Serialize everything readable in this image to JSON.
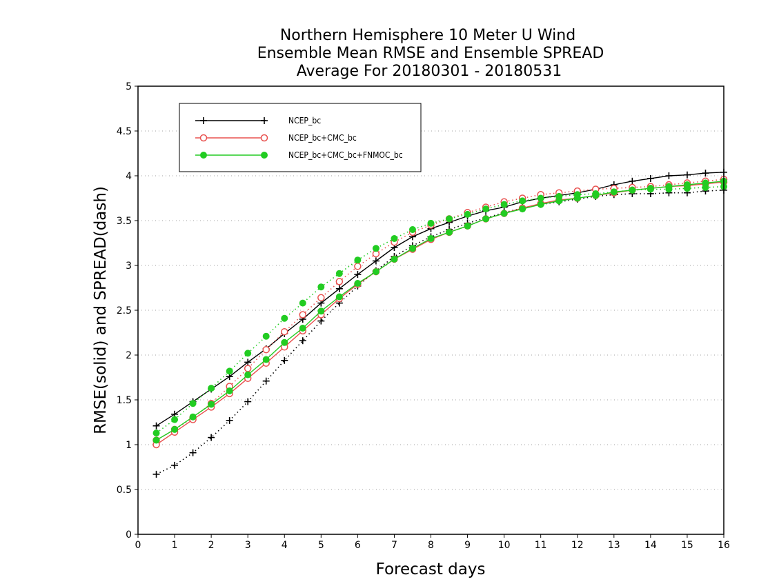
{
  "chart_data": {
    "type": "line",
    "title_lines": [
      "Northern Hemisphere 10 Meter U Wind",
      "Ensemble Mean RMSE and Ensemble SPREAD",
      "Average For 20180301 - 20180531"
    ],
    "xlabel": "Forecast days",
    "ylabel": "RMSE(solid) and SPREAD(dash)",
    "xlim": [
      0,
      16
    ],
    "ylim": [
      0,
      5
    ],
    "xticks": [
      0,
      1,
      2,
      3,
      4,
      5,
      6,
      7,
      8,
      9,
      10,
      11,
      12,
      13,
      14,
      15,
      16
    ],
    "yticks": [
      0,
      0.5,
      1,
      1.5,
      2,
      2.5,
      3,
      3.5,
      4,
      4.5,
      5
    ],
    "ytick_labels": [
      "0",
      "0.5",
      "1",
      "1.5",
      "2",
      "2.5",
      "3",
      "3.5",
      "4",
      "4.5",
      "5"
    ],
    "grid": "horizontal dotted",
    "legend_position": "top-left",
    "x": [
      0.5,
      1,
      1.5,
      2,
      2.5,
      3,
      3.5,
      4,
      4.5,
      5,
      5.5,
      6,
      6.5,
      7,
      7.5,
      8,
      8.5,
      9,
      9.5,
      10,
      10.5,
      11,
      11.5,
      12,
      12.5,
      13,
      13.5,
      14,
      14.5,
      15,
      15.5,
      16
    ],
    "series": [
      {
        "name": "NCEP_bc",
        "color": "#000000",
        "marker": "plus",
        "rmse": [
          1.21,
          1.34,
          1.48,
          1.62,
          1.76,
          1.92,
          2.07,
          2.24,
          2.4,
          2.58,
          2.74,
          2.9,
          3.05,
          3.2,
          3.32,
          3.41,
          3.48,
          3.55,
          3.61,
          3.65,
          3.71,
          3.75,
          3.78,
          3.81,
          3.85,
          3.9,
          3.94,
          3.97,
          4.0,
          4.01,
          4.03,
          4.04
        ],
        "spread": [
          0.67,
          0.77,
          0.91,
          1.08,
          1.27,
          1.48,
          1.71,
          1.94,
          2.16,
          2.38,
          2.58,
          2.77,
          2.94,
          3.1,
          3.22,
          3.32,
          3.4,
          3.47,
          3.53,
          3.59,
          3.64,
          3.68,
          3.71,
          3.74,
          3.77,
          3.79,
          3.8,
          3.8,
          3.81,
          3.81,
          3.83,
          3.84
        ]
      },
      {
        "name": "NCEP_bc+CMC_bc",
        "color": "#e8504e",
        "marker": "open-circle",
        "rmse": [
          1.0,
          1.14,
          1.28,
          1.42,
          1.57,
          1.74,
          1.91,
          2.09,
          2.27,
          2.45,
          2.63,
          2.79,
          2.93,
          3.07,
          3.18,
          3.29,
          3.37,
          3.44,
          3.52,
          3.58,
          3.64,
          3.69,
          3.73,
          3.75,
          3.78,
          3.81,
          3.84,
          3.86,
          3.88,
          3.89,
          3.91,
          3.93
        ],
        "spread": [
          1.05,
          1.17,
          1.3,
          1.46,
          1.65,
          1.85,
          2.06,
          2.26,
          2.45,
          2.64,
          2.82,
          2.99,
          3.13,
          3.26,
          3.37,
          3.45,
          3.52,
          3.59,
          3.65,
          3.71,
          3.75,
          3.79,
          3.81,
          3.83,
          3.85,
          3.86,
          3.87,
          3.88,
          3.9,
          3.92,
          3.94,
          3.96
        ]
      },
      {
        "name": "NCEP_bc+CMC_bc+FNMOC_bc",
        "color": "#22cc22",
        "marker": "filled-circle",
        "rmse": [
          1.05,
          1.17,
          1.31,
          1.45,
          1.6,
          1.78,
          1.95,
          2.14,
          2.3,
          2.49,
          2.65,
          2.8,
          2.93,
          3.07,
          3.19,
          3.3,
          3.37,
          3.44,
          3.52,
          3.58,
          3.63,
          3.68,
          3.72,
          3.75,
          3.78,
          3.82,
          3.84,
          3.86,
          3.88,
          3.9,
          3.92,
          3.94
        ],
        "spread": [
          1.13,
          1.28,
          1.46,
          1.63,
          1.82,
          2.02,
          2.21,
          2.41,
          2.58,
          2.76,
          2.91,
          3.06,
          3.19,
          3.3,
          3.4,
          3.47,
          3.52,
          3.57,
          3.63,
          3.68,
          3.72,
          3.75,
          3.77,
          3.79,
          3.8,
          3.82,
          3.84,
          3.85,
          3.85,
          3.86,
          3.87,
          3.88
        ]
      }
    ]
  }
}
